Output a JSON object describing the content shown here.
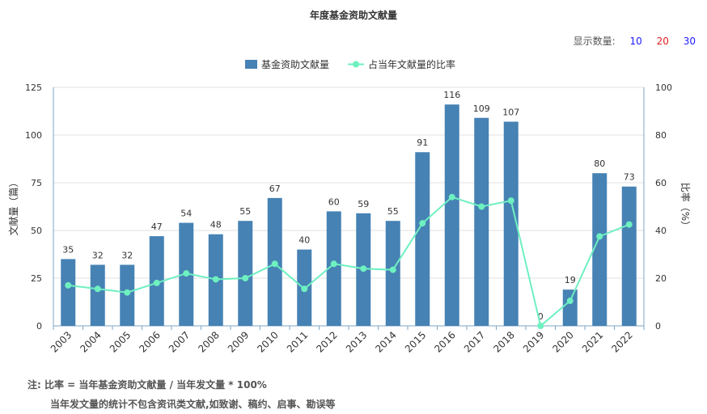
{
  "page": {
    "display_count_label": "显示数量:",
    "display_options": [
      "10",
      "20",
      "30"
    ],
    "display_option_colors": [
      "#1a1aff",
      "#e02020",
      "#1a1aff"
    ],
    "note_line1": "注:  比率 = 当年基金资助文献量 / 当年发文量 * 100%",
    "note_line2": "当年发文量的统计不包含资讯类文献,如致谢、稿约、启事、勘误等"
  },
  "chart_data": {
    "type": "bar",
    "title": "年度基金资助文献量",
    "categories": [
      "2003",
      "2004",
      "2005",
      "2006",
      "2007",
      "2008",
      "2009",
      "2010",
      "2011",
      "2012",
      "2013",
      "2014",
      "2015",
      "2016",
      "2017",
      "2018",
      "2019",
      "2020",
      "2021",
      "2022"
    ],
    "series": [
      {
        "name": "基金资助文献量",
        "type": "bar",
        "axis": "left",
        "color": "#4682b4",
        "values": [
          35,
          32,
          32,
          47,
          54,
          48,
          55,
          67,
          40,
          60,
          59,
          55,
          91,
          116,
          109,
          107,
          0,
          19,
          80,
          73
        ]
      },
      {
        "name": "占当年文献量的比率",
        "type": "line",
        "axis": "right",
        "color": "#6ef0c0",
        "values": [
          17,
          15.5,
          14,
          18,
          22,
          19.5,
          20,
          26,
          15.5,
          26,
          24,
          23.5,
          43,
          54,
          50,
          52.5,
          0,
          10.5,
          37.5,
          42.5
        ]
      }
    ],
    "ylabel": "文献量（篇）",
    "y2label": "比率（%）",
    "ylim": [
      0,
      125
    ],
    "y2lim": [
      0,
      100
    ],
    "yticks": [
      0,
      25,
      50,
      75,
      100,
      125
    ],
    "y2ticks": [
      0,
      20,
      40,
      60,
      80,
      100
    ],
    "grid": true,
    "legend": "top-center"
  }
}
